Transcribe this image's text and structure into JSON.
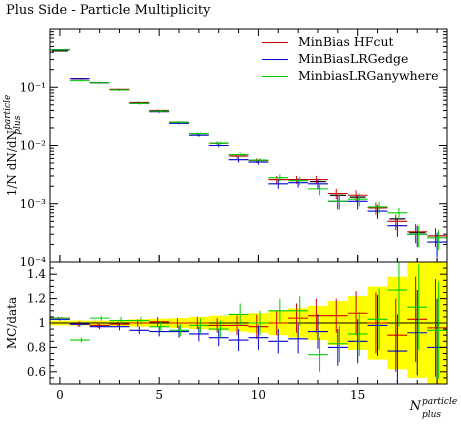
{
  "chart_data": {
    "type": "scatter",
    "title": "Plus Side - Particle Multiplicity",
    "ylabel_main": "1/N dN/dN",
    "ylabel_main_sup": "particle",
    "ylabel_main_sub": "plus",
    "ylabel_ratio": "MC/data",
    "xlabel": "N",
    "xlabel_sup": "particle",
    "xlabel_sub": "plus",
    "xlim": [
      -0.5,
      19.5
    ],
    "ylim_main": [
      0.0001,
      1.0
    ],
    "yscale_main": "log",
    "ylim_ratio": [
      0.5,
      1.5
    ],
    "x_ticks": [
      "0",
      "5",
      "10",
      "15"
    ],
    "y_ticks_main": [
      "10⁻¹",
      "10⁻²",
      "10⁻³",
      "10⁻⁴"
    ],
    "y_ticks_ratio": [
      "0.6",
      "0.8",
      "1",
      "1.2",
      "1.4"
    ],
    "legend_position": "top-right",
    "data": {
      "x": [
        0,
        1,
        2,
        3,
        4,
        5,
        6,
        7,
        8,
        9,
        10,
        11,
        12,
        13,
        14,
        15,
        16,
        17,
        18,
        19
      ],
      "values": [
        0.42,
        0.14,
        0.12,
        0.091,
        0.054,
        0.039,
        0.025,
        0.016,
        0.011,
        0.0066,
        0.0056,
        0.0026,
        0.0025,
        0.0024,
        0.0014,
        0.0013,
        0.00085,
        0.00055,
        0.00032,
        0.00028
      ],
      "ratio_band_up": [
        0.02,
        0.02,
        0.02,
        0.025,
        0.03,
        0.035,
        0.04,
        0.05,
        0.06,
        0.07,
        0.08,
        0.1,
        0.12,
        0.14,
        0.18,
        0.22,
        0.3,
        0.38,
        0.5,
        0.55
      ],
      "ratio_band_down": [
        0.02,
        0.02,
        0.02,
        0.025,
        0.03,
        0.035,
        0.04,
        0.05,
        0.06,
        0.07,
        0.08,
        0.1,
        0.12,
        0.14,
        0.18,
        0.22,
        0.3,
        0.38,
        0.45,
        0.5
      ]
    },
    "series": [
      {
        "name": "MinBias HFcut",
        "color": "#cc0000",
        "values": [
          0.44,
          0.14,
          0.12,
          0.092,
          0.055,
          0.04,
          0.025,
          0.016,
          0.011,
          0.0066,
          0.0055,
          0.0026,
          0.0026,
          0.0026,
          0.0015,
          0.0014,
          0.00085,
          0.0005,
          0.00033,
          0.00028
        ],
        "y_err": [
          0.01,
          0.004,
          0.004,
          0.003,
          0.002,
          0.0015,
          0.001,
          0.0008,
          0.0007,
          0.0006,
          0.0005,
          0.0004,
          0.0004,
          0.0004,
          0.0003,
          0.0003,
          0.0002,
          0.00015,
          0.00012,
          0.0001
        ],
        "ratio": [
          1.04,
          0.99,
          0.98,
          0.99,
          1.0,
          1.01,
          1.0,
          1.0,
          0.98,
          0.98,
          0.97,
          1.0,
          1.04,
          1.06,
          1.06,
          1.08,
          1.0,
          0.9,
          1.03,
          0.96
        ],
        "ratio_err": [
          0.01,
          0.02,
          0.02,
          0.02,
          0.03,
          0.04,
          0.04,
          0.05,
          0.06,
          0.08,
          0.1,
          0.1,
          0.12,
          0.14,
          0.14,
          0.18,
          0.25,
          0.3,
          0.35,
          0.4
        ]
      },
      {
        "name": "MinBiasLRGedge",
        "color": "#0000cc",
        "values": [
          0.44,
          0.14,
          0.12,
          0.09,
          0.053,
          0.038,
          0.024,
          0.015,
          0.01,
          0.0057,
          0.0052,
          0.0022,
          0.0023,
          0.0022,
          0.0011,
          0.0011,
          0.00075,
          0.00042,
          0.0003,
          0.00022
        ],
        "y_err": [
          0.01,
          0.004,
          0.004,
          0.003,
          0.002,
          0.0015,
          0.001,
          0.0008,
          0.0007,
          0.0006,
          0.0005,
          0.0004,
          0.0004,
          0.0004,
          0.0003,
          0.0003,
          0.0002,
          0.00015,
          0.00012,
          0.0001
        ],
        "ratio": [
          1.03,
          0.99,
          0.97,
          0.97,
          0.94,
          0.93,
          0.93,
          0.91,
          0.88,
          0.86,
          0.88,
          0.85,
          0.87,
          0.93,
          0.8,
          0.85,
          0.98,
          0.77,
          0.92,
          0.8
        ],
        "ratio_err": [
          0.01,
          0.02,
          0.02,
          0.03,
          0.03,
          0.04,
          0.05,
          0.06,
          0.07,
          0.09,
          0.1,
          0.1,
          0.12,
          0.14,
          0.15,
          0.18,
          0.25,
          0.3,
          0.35,
          0.4
        ]
      },
      {
        "name": "MinbiasLRGanywhere",
        "color": "#00cc00",
        "values": [
          0.44,
          0.13,
          0.12,
          0.09,
          0.053,
          0.039,
          0.025,
          0.016,
          0.011,
          0.007,
          0.0056,
          0.0028,
          0.0025,
          0.0018,
          0.0011,
          0.0012,
          0.00088,
          0.0007,
          0.0003,
          0.00026
        ],
        "y_err": [
          0.01,
          0.004,
          0.004,
          0.003,
          0.002,
          0.0015,
          0.001,
          0.0008,
          0.0007,
          0.0006,
          0.0005,
          0.0004,
          0.0004,
          0.0004,
          0.0003,
          0.0003,
          0.0002,
          0.00015,
          0.00012,
          0.0001
        ],
        "ratio": [
          1.04,
          0.86,
          1.04,
          1.02,
          1.02,
          0.97,
          0.94,
          0.98,
          0.95,
          1.07,
          1.0,
          1.1,
          1.1,
          0.74,
          0.83,
          0.91,
          1.03,
          1.27,
          1.13,
          0.94
        ],
        "ratio_err": [
          0.01,
          0.02,
          0.02,
          0.03,
          0.03,
          0.04,
          0.05,
          0.06,
          0.07,
          0.09,
          0.1,
          0.1,
          0.12,
          0.14,
          0.15,
          0.18,
          0.25,
          0.3,
          0.35,
          0.4
        ]
      }
    ]
  }
}
